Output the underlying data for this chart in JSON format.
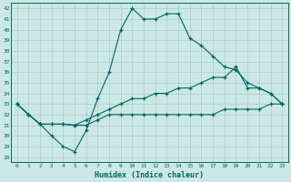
{
  "xlabel": "Humidex (Indice chaleur)",
  "bg_color": "#cce8e4",
  "grid_color": "#a8ccc8",
  "line_color": "#006666",
  "xlim": [
    -0.5,
    23.5
  ],
  "ylim": [
    27.5,
    42.5
  ],
  "xticks": [
    0,
    1,
    2,
    3,
    4,
    5,
    6,
    7,
    8,
    9,
    10,
    11,
    12,
    13,
    14,
    15,
    16,
    17,
    18,
    19,
    20,
    21,
    22,
    23
  ],
  "yticks": [
    28,
    29,
    30,
    31,
    32,
    33,
    34,
    35,
    36,
    37,
    38,
    39,
    40,
    41,
    42
  ],
  "series": [
    [
      33,
      32,
      31.1,
      30,
      29,
      28.5,
      30.5,
      33.5,
      36,
      40,
      42,
      41,
      41,
      41.5,
      41.5,
      39.2,
      38.5,
      37.5,
      36.5,
      36.2,
      35,
      34.5,
      34,
      33
    ],
    [
      33,
      32,
      31.1,
      31.1,
      31.1,
      31,
      31,
      31.5,
      32,
      32,
      32,
      32,
      32,
      32,
      32,
      32,
      32,
      32,
      32.5,
      32.5,
      32.5,
      32.5,
      33,
      33
    ],
    [
      33,
      32,
      31.1,
      31.1,
      31.1,
      31,
      31.5,
      32,
      32.5,
      33,
      33.5,
      33.5,
      34,
      34,
      34.5,
      34.5,
      35,
      35.5,
      35.5,
      36.5,
      34.5,
      34.5,
      34,
      33
    ]
  ]
}
